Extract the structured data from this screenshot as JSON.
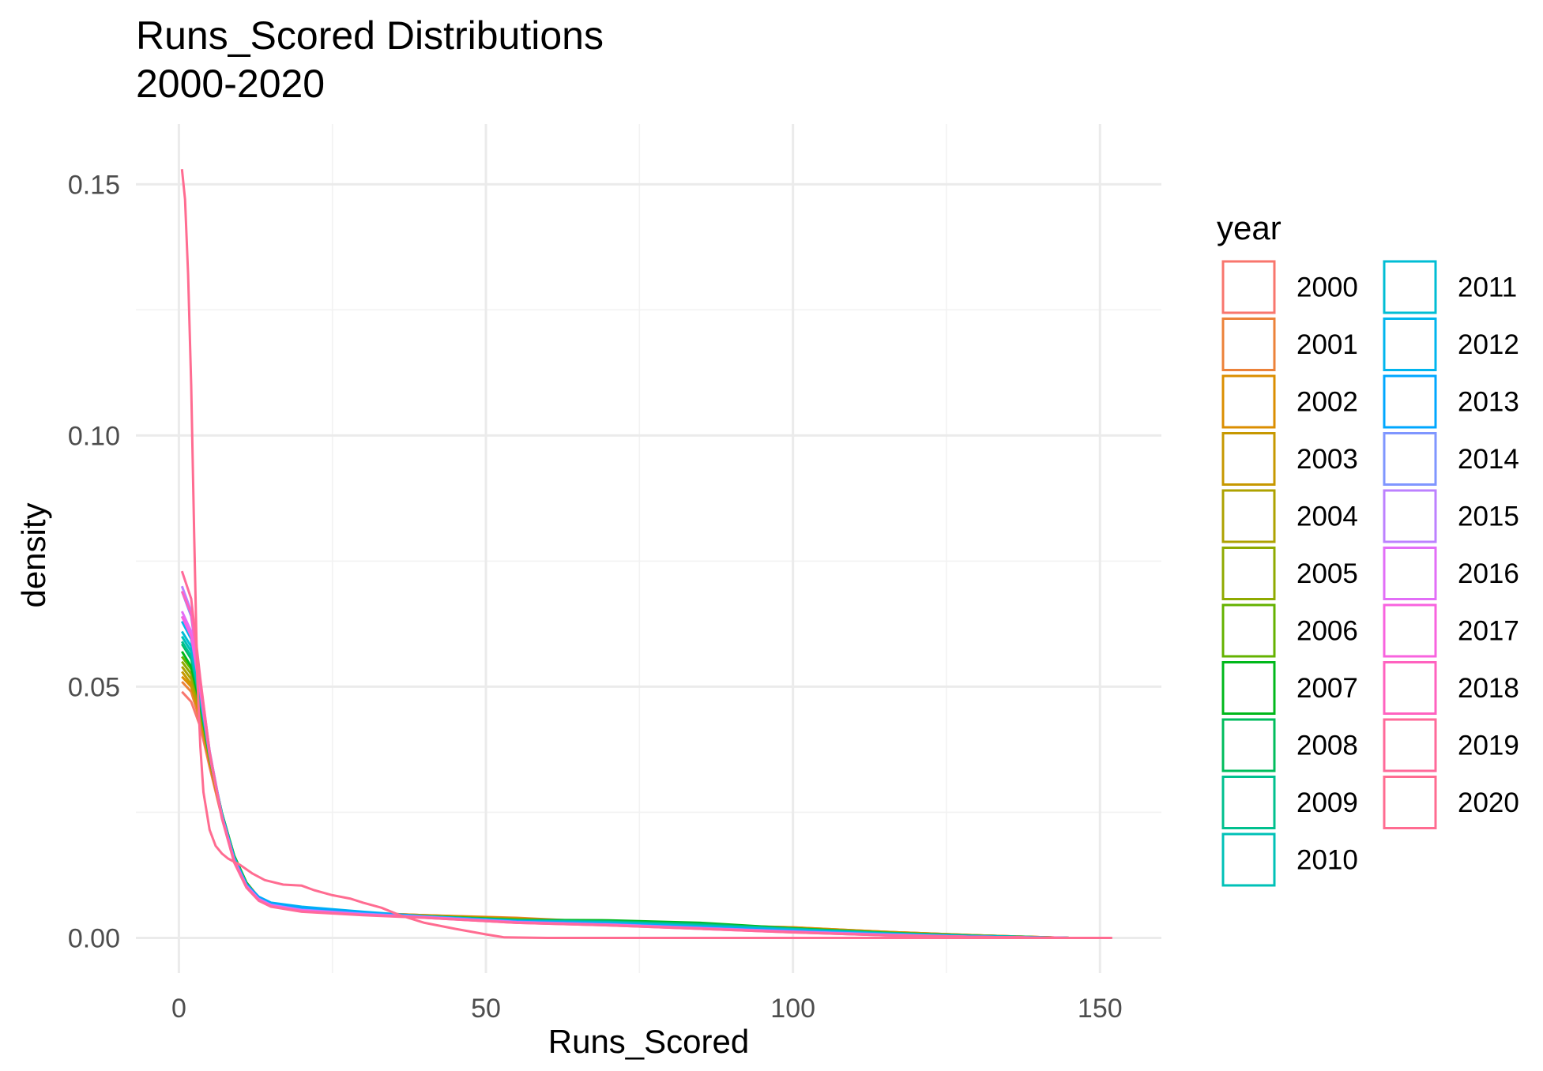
{
  "chart_data": {
    "type": "line",
    "title": "Runs_Scored Distributions",
    "subtitle": "2000-2020",
    "xlabel": "Runs_Scored",
    "ylabel": "density",
    "xlim": [
      -7,
      160
    ],
    "ylim": [
      -0.007,
      0.162
    ],
    "x_ticks": [
      0,
      50,
      100,
      150
    ],
    "y_ticks": [
      0.0,
      0.05,
      0.1,
      0.15
    ],
    "x_tick_labels": [
      "0",
      "50",
      "100",
      "150"
    ],
    "y_tick_labels": [
      "0.00",
      "0.05",
      "0.10",
      "0.15"
    ],
    "grid": true,
    "legend": {
      "title": "year",
      "position": "right",
      "columns": 2
    },
    "series": [
      {
        "name": "2000",
        "color": "#F8766D",
        "x": [
          0.5,
          2,
          3.5,
          5,
          7,
          9,
          11,
          13,
          15,
          20,
          30,
          40,
          55,
          70,
          85,
          100,
          115,
          130,
          145
        ],
        "y": [
          0.049,
          0.047,
          0.042,
          0.034,
          0.024,
          0.016,
          0.011,
          0.008,
          0.0068,
          0.0058,
          0.005,
          0.0045,
          0.0038,
          0.003,
          0.0026,
          0.002,
          0.0012,
          0.0005,
          0.0
        ]
      },
      {
        "name": "2001",
        "color": "#EC8239",
        "x": [
          0.5,
          2,
          3.5,
          5,
          7,
          9,
          11,
          13,
          15,
          20,
          30,
          40,
          55,
          70,
          85,
          100,
          115,
          130,
          145
        ],
        "y": [
          0.051,
          0.049,
          0.043,
          0.0345,
          0.0242,
          0.0162,
          0.011,
          0.008,
          0.0068,
          0.0058,
          0.005,
          0.0045,
          0.004,
          0.0031,
          0.0026,
          0.0021,
          0.0012,
          0.0005,
          0.0
        ]
      },
      {
        "name": "2002",
        "color": "#DB8E00",
        "x": [
          0.5,
          2,
          3.5,
          5,
          7,
          9,
          11,
          13,
          15,
          20,
          30,
          40,
          55,
          70,
          85,
          100,
          115,
          130,
          145
        ],
        "y": [
          0.052,
          0.05,
          0.044,
          0.035,
          0.0245,
          0.0163,
          0.011,
          0.0081,
          0.0069,
          0.0058,
          0.005,
          0.0045,
          0.0039,
          0.0031,
          0.0025,
          0.0021,
          0.0012,
          0.0005,
          0.0
        ]
      },
      {
        "name": "2003",
        "color": "#C79800",
        "x": [
          0.5,
          2,
          3.5,
          5,
          7,
          9,
          11,
          13,
          15,
          20,
          30,
          40,
          55,
          70,
          85,
          100,
          115,
          130,
          145
        ],
        "y": [
          0.053,
          0.0505,
          0.0445,
          0.0352,
          0.0246,
          0.0163,
          0.011,
          0.008,
          0.0068,
          0.0057,
          0.005,
          0.0044,
          0.0038,
          0.003,
          0.0025,
          0.002,
          0.0011,
          0.0005,
          0.0
        ]
      },
      {
        "name": "2004",
        "color": "#AEA200",
        "x": [
          0.5,
          2,
          3.5,
          5,
          7,
          9,
          11,
          13,
          15,
          20,
          30,
          40,
          55,
          70,
          85,
          100,
          115,
          130,
          145
        ],
        "y": [
          0.054,
          0.0515,
          0.045,
          0.0355,
          0.0247,
          0.0163,
          0.011,
          0.008,
          0.0068,
          0.0057,
          0.0049,
          0.0044,
          0.0037,
          0.003,
          0.0025,
          0.0019,
          0.0011,
          0.0004,
          0.0
        ]
      },
      {
        "name": "2005",
        "color": "#8FAA00",
        "x": [
          0.5,
          2,
          3.5,
          5,
          7,
          9,
          11,
          13,
          15,
          20,
          30,
          40,
          55,
          70,
          85,
          100,
          115,
          130,
          145
        ],
        "y": [
          0.055,
          0.0525,
          0.0455,
          0.0358,
          0.0248,
          0.0164,
          0.011,
          0.008,
          0.0068,
          0.0056,
          0.0049,
          0.0044,
          0.0037,
          0.0031,
          0.0026,
          0.0019,
          0.0011,
          0.0004,
          0.0
        ]
      },
      {
        "name": "2006",
        "color": "#64B200",
        "x": [
          0.5,
          2,
          3.5,
          5,
          7,
          9,
          11,
          13,
          15,
          20,
          30,
          40,
          55,
          70,
          85,
          100,
          115,
          130,
          145
        ],
        "y": [
          0.056,
          0.0535,
          0.046,
          0.036,
          0.0249,
          0.0164,
          0.011,
          0.0079,
          0.0067,
          0.0056,
          0.0048,
          0.0043,
          0.0036,
          0.0034,
          0.0027,
          0.0019,
          0.001,
          0.0004,
          0.0
        ]
      },
      {
        "name": "2007",
        "color": "#00B81B",
        "x": [
          0.5,
          2,
          3.5,
          5,
          7,
          9,
          11,
          13,
          15,
          20,
          30,
          40,
          55,
          70,
          85,
          100,
          115,
          130,
          145
        ],
        "y": [
          0.057,
          0.054,
          0.0462,
          0.036,
          0.0249,
          0.0163,
          0.011,
          0.0079,
          0.0067,
          0.0055,
          0.0048,
          0.0043,
          0.0036,
          0.0035,
          0.003,
          0.0019,
          0.001,
          0.0004,
          0.0
        ]
      },
      {
        "name": "2008",
        "color": "#00BD5C",
        "x": [
          0.5,
          2,
          3.5,
          5,
          7,
          9,
          11,
          13,
          15,
          20,
          30,
          40,
          55,
          70,
          85,
          100,
          115,
          130,
          145
        ],
        "y": [
          0.0585,
          0.0555,
          0.0468,
          0.0362,
          0.0248,
          0.0162,
          0.0108,
          0.0078,
          0.0066,
          0.0055,
          0.0048,
          0.0042,
          0.0035,
          0.0033,
          0.0028,
          0.0018,
          0.001,
          0.0004,
          0.0
        ]
      },
      {
        "name": "2009",
        "color": "#00C08E",
        "x": [
          0.5,
          2,
          3.5,
          5,
          7,
          9,
          11,
          13,
          15,
          20,
          30,
          40,
          55,
          70,
          85,
          100,
          115,
          130,
          145
        ],
        "y": [
          0.059,
          0.056,
          0.047,
          0.0362,
          0.0247,
          0.0161,
          0.0107,
          0.0078,
          0.0066,
          0.0055,
          0.0048,
          0.0042,
          0.0035,
          0.0032,
          0.0026,
          0.0018,
          0.0009,
          0.0004,
          0.0
        ]
      },
      {
        "name": "2010",
        "color": "#00C1B7",
        "x": [
          0.5,
          2,
          3.5,
          5,
          7,
          9,
          11,
          13,
          15,
          20,
          30,
          40,
          55,
          70,
          85,
          100,
          115,
          130,
          145
        ],
        "y": [
          0.06,
          0.057,
          0.0475,
          0.0364,
          0.0246,
          0.016,
          0.0106,
          0.0078,
          0.0066,
          0.0056,
          0.0049,
          0.0043,
          0.0034,
          0.0031,
          0.0024,
          0.0017,
          0.0009,
          0.0003,
          0.0
        ]
      },
      {
        "name": "2011",
        "color": "#00BDD4",
        "x": [
          0.5,
          2,
          3.5,
          5,
          7,
          9,
          11,
          13,
          15,
          20,
          30,
          40,
          55,
          70,
          85,
          100,
          115,
          130,
          145
        ],
        "y": [
          0.061,
          0.058,
          0.048,
          0.0365,
          0.0245,
          0.0159,
          0.0106,
          0.0079,
          0.0067,
          0.0058,
          0.005,
          0.0043,
          0.0034,
          0.003,
          0.0023,
          0.0016,
          0.0008,
          0.0003,
          0.0
        ]
      },
      {
        "name": "2012",
        "color": "#00B5EE",
        "x": [
          0.5,
          2,
          3.5,
          5,
          7,
          9,
          11,
          13,
          15,
          20,
          30,
          40,
          55,
          70,
          85,
          100,
          115,
          130,
          145
        ],
        "y": [
          0.063,
          0.0595,
          0.0488,
          0.0368,
          0.0245,
          0.0158,
          0.0107,
          0.0082,
          0.007,
          0.0062,
          0.0052,
          0.0043,
          0.0033,
          0.0029,
          0.0022,
          0.0015,
          0.0008,
          0.0003,
          0.0
        ]
      },
      {
        "name": "2013",
        "color": "#00A7FF",
        "x": [
          0.5,
          2,
          3.5,
          5,
          7,
          9,
          11,
          13,
          15,
          20,
          30,
          40,
          55,
          70,
          85,
          100,
          115,
          130,
          145
        ],
        "y": [
          0.064,
          0.0605,
          0.0495,
          0.037,
          0.0245,
          0.0158,
          0.0107,
          0.0081,
          0.0069,
          0.006,
          0.0051,
          0.0042,
          0.0033,
          0.0028,
          0.0021,
          0.0014,
          0.0007,
          0.0003,
          0.0
        ]
      },
      {
        "name": "2014",
        "color": "#7F96FF",
        "x": [
          0.5,
          2,
          3.5,
          5,
          7,
          9,
          11,
          13,
          15,
          20,
          30,
          40,
          55,
          70,
          85,
          100,
          115,
          130,
          145
        ],
        "y": [
          0.069,
          0.064,
          0.0505,
          0.0372,
          0.0243,
          0.0155,
          0.0104,
          0.0078,
          0.0066,
          0.0056,
          0.0048,
          0.0042,
          0.0032,
          0.0027,
          0.002,
          0.0013,
          0.0007,
          0.0002,
          0.0
        ]
      },
      {
        "name": "2015",
        "color": "#BC81FF",
        "x": [
          0.5,
          2,
          3.5,
          5,
          7,
          9,
          11,
          13,
          15,
          20,
          30,
          40,
          55,
          70,
          85,
          100,
          115,
          130,
          145
        ],
        "y": [
          0.07,
          0.065,
          0.051,
          0.0372,
          0.0242,
          0.0154,
          0.0103,
          0.0077,
          0.0065,
          0.0055,
          0.0047,
          0.0041,
          0.0031,
          0.0026,
          0.0019,
          0.0012,
          0.0006,
          0.0002,
          0.0
        ]
      },
      {
        "name": "2016",
        "color": "#E26EF7",
        "x": [
          0.5,
          2,
          3.5,
          5,
          7,
          9,
          11,
          13,
          15,
          20,
          30,
          40,
          55,
          70,
          85,
          100,
          115,
          130,
          145
        ],
        "y": [
          0.065,
          0.061,
          0.0495,
          0.0366,
          0.0242,
          0.0154,
          0.0103,
          0.0077,
          0.0065,
          0.0055,
          0.0047,
          0.0041,
          0.0031,
          0.0026,
          0.0019,
          0.0012,
          0.0006,
          0.0002,
          0.0
        ]
      },
      {
        "name": "2017",
        "color": "#F863DF",
        "x": [
          0.5,
          2,
          3.5,
          5,
          7,
          9,
          11,
          13,
          15,
          20,
          30,
          40,
          55,
          70,
          85,
          100,
          115,
          130,
          145
        ],
        "y": [
          0.064,
          0.06,
          0.049,
          0.0364,
          0.0241,
          0.0153,
          0.0102,
          0.0076,
          0.0064,
          0.0054,
          0.0046,
          0.0041,
          0.0031,
          0.0026,
          0.0019,
          0.0012,
          0.0006,
          0.0002,
          0.0
        ]
      },
      {
        "name": "2018",
        "color": "#FF62BF",
        "x": [
          0.5,
          2,
          3.5,
          5,
          7,
          9,
          11,
          13,
          15,
          20,
          30,
          40,
          55,
          70,
          85,
          100,
          115,
          130,
          145
        ],
        "y": [
          0.069,
          0.0645,
          0.0505,
          0.0368,
          0.024,
          0.0152,
          0.0101,
          0.0075,
          0.0063,
          0.0053,
          0.0046,
          0.004,
          0.003,
          0.0025,
          0.0018,
          0.0011,
          0.0005,
          0.0002,
          0.0
        ]
      },
      {
        "name": "2019",
        "color": "#FF6A9A",
        "x": [
          0.5,
          2,
          3.5,
          5,
          7,
          9,
          11,
          13,
          15,
          20,
          30,
          40,
          55,
          70,
          85,
          100,
          115,
          130,
          145
        ],
        "y": [
          0.073,
          0.0675,
          0.0515,
          0.037,
          0.0238,
          0.015,
          0.01,
          0.0074,
          0.0062,
          0.0052,
          0.0045,
          0.004,
          0.003,
          0.0025,
          0.0018,
          0.0011,
          0.0005,
          0.0002,
          0.0
        ]
      },
      {
        "name": "2020",
        "color": "#FF6C91",
        "x": [
          0.5,
          1,
          1.5,
          2,
          2.5,
          3,
          3.5,
          4,
          5,
          6,
          7,
          8,
          10,
          12,
          14,
          17,
          20,
          22,
          25,
          28,
          30,
          33,
          36,
          40,
          45,
          50,
          53,
          60,
          80,
          100,
          120,
          140,
          152
        ],
        "y": [
          0.153,
          0.147,
          0.132,
          0.11,
          0.08,
          0.052,
          0.038,
          0.029,
          0.0215,
          0.0183,
          0.0168,
          0.0158,
          0.0145,
          0.0128,
          0.0115,
          0.0106,
          0.0104,
          0.0095,
          0.0085,
          0.0078,
          0.007,
          0.006,
          0.0045,
          0.003,
          0.0018,
          0.0007,
          0.0001,
          0.0,
          0.0,
          0.0,
          0.0,
          0.0,
          0.0
        ]
      }
    ]
  }
}
